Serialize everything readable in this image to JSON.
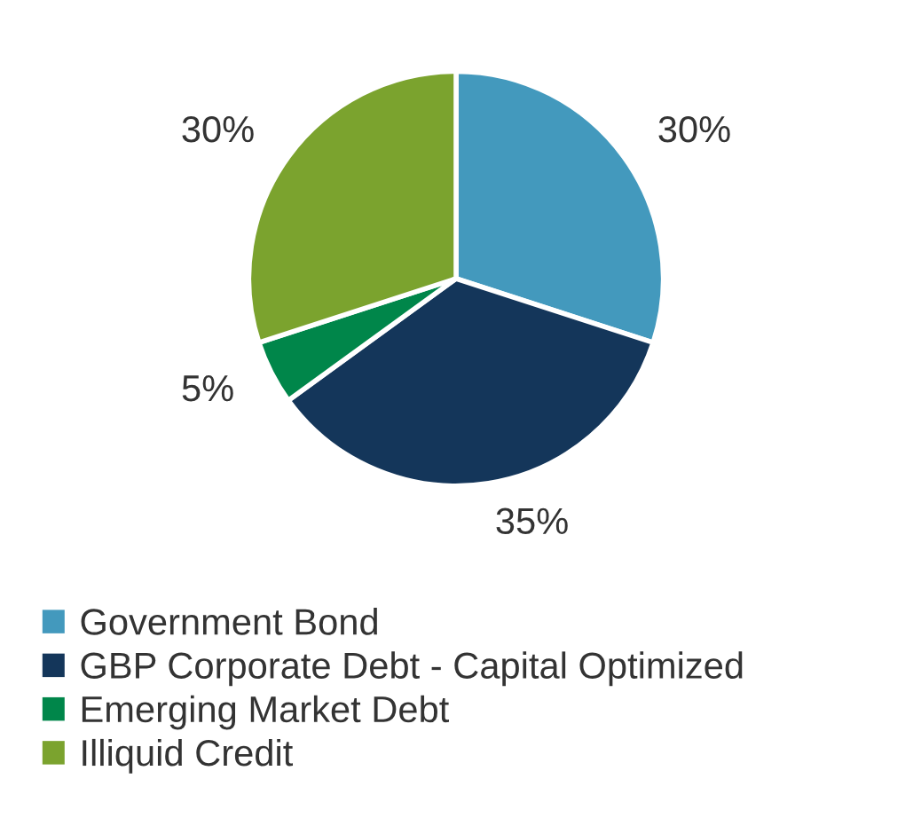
{
  "chart_data": {
    "type": "pie",
    "categories": [
      "Government Bond",
      "GBP Corporate Debt - Capital Optimized",
      "Emerging Market Debt",
      "Illiquid Credit"
    ],
    "values": [
      30,
      35,
      5,
      30
    ],
    "value_labels": [
      "30%",
      "35%",
      "5%",
      "30%"
    ],
    "colors": [
      "#4399bd",
      "#14365a",
      "#00864a",
      "#7ba32e"
    ],
    "legend": "bottom left"
  }
}
